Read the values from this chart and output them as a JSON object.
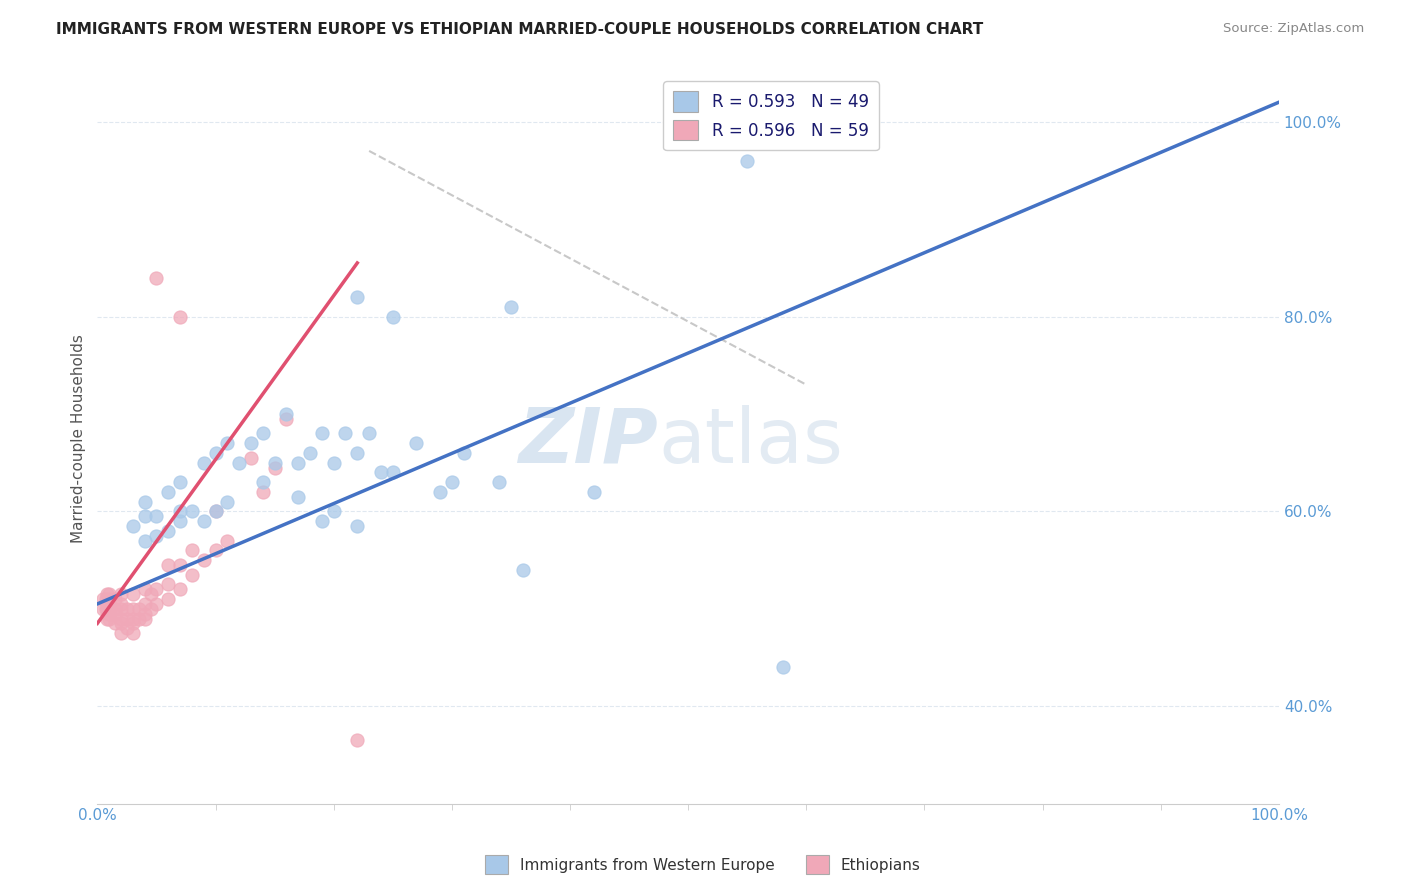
{
  "title": "IMMIGRANTS FROM WESTERN EUROPE VS ETHIOPIAN MARRIED-COUPLE HOUSEHOLDS CORRELATION CHART",
  "source": "Source: ZipAtlas.com",
  "ylabel": "Married-couple Households",
  "legend_labels": [
    "Immigrants from Western Europe",
    "Ethiopians"
  ],
  "legend_r": [
    "R = 0.593",
    "R = 0.596"
  ],
  "legend_n": [
    "N = 49",
    "N = 59"
  ],
  "blue_color": "#a8c8e8",
  "pink_color": "#f0a8b8",
  "blue_line_color": "#4472c4",
  "pink_line_color": "#e05070",
  "diagonal_color": "#c8c8c8",
  "watermark_zip_color": "#c0d4e8",
  "watermark_atlas_color": "#c8d8e8",
  "title_color": "#222222",
  "source_color": "#888888",
  "tick_color": "#5b9bd5",
  "grid_color": "#e0e8f0",
  "axis_color": "#cccccc",
  "blue_dots_x": [
    0.03,
    0.04,
    0.04,
    0.04,
    0.05,
    0.05,
    0.06,
    0.06,
    0.07,
    0.07,
    0.07,
    0.08,
    0.09,
    0.09,
    0.1,
    0.1,
    0.11,
    0.11,
    0.12,
    0.13,
    0.14,
    0.14,
    0.15,
    0.16,
    0.17,
    0.18,
    0.19,
    0.2,
    0.21,
    0.22,
    0.23,
    0.24,
    0.25,
    0.27,
    0.29,
    0.31,
    0.34,
    0.36,
    0.42,
    0.58,
    0.22,
    0.25,
    0.35,
    0.55,
    0.17,
    0.19,
    0.2,
    0.22,
    0.3
  ],
  "blue_dots_y": [
    0.585,
    0.57,
    0.595,
    0.61,
    0.575,
    0.595,
    0.58,
    0.62,
    0.59,
    0.6,
    0.63,
    0.6,
    0.59,
    0.65,
    0.6,
    0.66,
    0.61,
    0.67,
    0.65,
    0.67,
    0.63,
    0.68,
    0.65,
    0.7,
    0.65,
    0.66,
    0.68,
    0.65,
    0.68,
    0.66,
    0.68,
    0.64,
    0.64,
    0.67,
    0.62,
    0.66,
    0.63,
    0.54,
    0.62,
    0.44,
    0.82,
    0.8,
    0.81,
    0.96,
    0.615,
    0.59,
    0.6,
    0.585,
    0.63
  ],
  "pink_dots_x": [
    0.005,
    0.005,
    0.007,
    0.007,
    0.008,
    0.008,
    0.008,
    0.01,
    0.01,
    0.01,
    0.01,
    0.01,
    0.01,
    0.015,
    0.015,
    0.015,
    0.015,
    0.02,
    0.02,
    0.02,
    0.02,
    0.02,
    0.02,
    0.025,
    0.025,
    0.025,
    0.03,
    0.03,
    0.03,
    0.03,
    0.03,
    0.035,
    0.035,
    0.04,
    0.04,
    0.04,
    0.04,
    0.045,
    0.045,
    0.05,
    0.05,
    0.06,
    0.06,
    0.06,
    0.07,
    0.07,
    0.08,
    0.08,
    0.09,
    0.1,
    0.1,
    0.11,
    0.13,
    0.14,
    0.15,
    0.16,
    0.05,
    0.07,
    0.22
  ],
  "pink_dots_y": [
    0.51,
    0.5,
    0.5,
    0.51,
    0.49,
    0.5,
    0.515,
    0.49,
    0.495,
    0.5,
    0.505,
    0.51,
    0.515,
    0.485,
    0.495,
    0.5,
    0.51,
    0.475,
    0.485,
    0.49,
    0.5,
    0.505,
    0.515,
    0.48,
    0.49,
    0.5,
    0.475,
    0.485,
    0.49,
    0.5,
    0.515,
    0.49,
    0.5,
    0.49,
    0.495,
    0.505,
    0.52,
    0.5,
    0.515,
    0.505,
    0.52,
    0.51,
    0.525,
    0.545,
    0.52,
    0.545,
    0.535,
    0.56,
    0.55,
    0.56,
    0.6,
    0.57,
    0.655,
    0.62,
    0.645,
    0.695,
    0.84,
    0.8,
    0.365
  ],
  "blue_line_x": [
    0.0,
    1.0
  ],
  "blue_line_y": [
    0.505,
    1.02
  ],
  "pink_line_x": [
    0.0,
    0.22
  ],
  "pink_line_y": [
    0.485,
    0.855
  ],
  "diag_line_x": [
    0.23,
    0.6
  ],
  "diag_line_y": [
    0.97,
    0.73
  ],
  "xlim": [
    0.0,
    1.0
  ],
  "ylim": [
    0.3,
    1.05
  ],
  "ytick_vals": [
    0.4,
    0.6,
    0.8,
    1.0
  ],
  "ytick_labels": [
    "40.0%",
    "60.0%",
    "80.0%",
    "100.0%"
  ],
  "xtick_vals": [
    0.0,
    1.0
  ],
  "xtick_labels": [
    "0.0%",
    "100.0%"
  ]
}
